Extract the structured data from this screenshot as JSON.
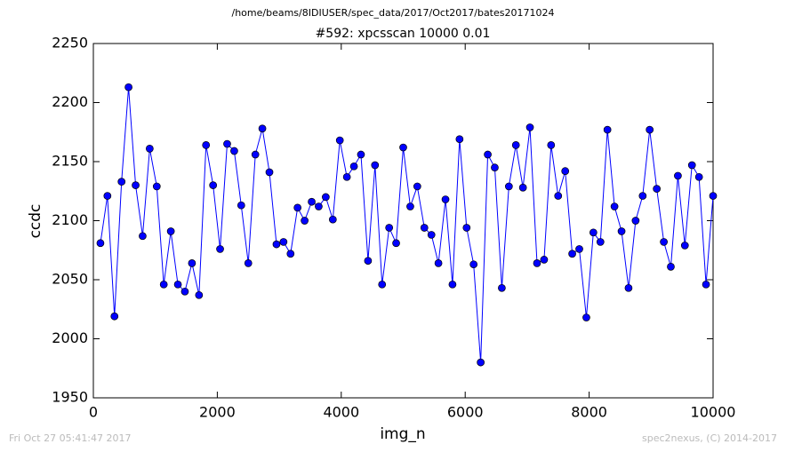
{
  "chart_data": {
    "type": "line",
    "suptitle": "/home/beams/8IDIUSER/spec_data/2017/Oct2017/bates20171024",
    "title": "#592: xpcsscan 10000 0.01",
    "xlabel": "img_n",
    "ylabel": "ccdc",
    "footer_left": "Fri Oct 27 05:41:47 2017",
    "footer_right": "spec2nexus, (C) 2014-2017",
    "xlim": [
      0,
      10000
    ],
    "xticks": [
      0,
      2000,
      4000,
      6000,
      8000,
      10000
    ],
    "ylim": [
      1950,
      2250
    ],
    "yticks": [
      1950,
      2000,
      2050,
      2100,
      2150,
      2200,
      2250
    ],
    "x": [
      114,
      227,
      341,
      455,
      568,
      682,
      795,
      909,
      1023,
      1136,
      1250,
      1364,
      1477,
      1591,
      1705,
      1818,
      1932,
      2045,
      2159,
      2273,
      2386,
      2500,
      2614,
      2727,
      2841,
      2955,
      3068,
      3182,
      3295,
      3409,
      3523,
      3636,
      3750,
      3864,
      3977,
      4091,
      4205,
      4318,
      4432,
      4545,
      4659,
      4773,
      4886,
      5000,
      5114,
      5227,
      5341,
      5455,
      5568,
      5682,
      5795,
      5909,
      6023,
      6136,
      6250,
      6364,
      6477,
      6591,
      6705,
      6818,
      6932,
      7045,
      7159,
      7273,
      7386,
      7500,
      7614,
      7727,
      7841,
      7955,
      8068,
      8182,
      8295,
      8409,
      8523,
      8636,
      8750,
      8864,
      8977,
      9091,
      9205,
      9318,
      9432,
      9545,
      9659,
      9773,
      9886,
      10000
    ],
    "series": [
      {
        "name": "ccdc",
        "color": "#0000ff",
        "values": [
          2081,
          2121,
          2019,
          2133,
          2213,
          2130,
          2087,
          2161,
          2129,
          2046,
          2091,
          2046,
          2040,
          2064,
          2037,
          2164,
          2130,
          2076,
          2165,
          2159,
          2113,
          2064,
          2156,
          2178,
          2141,
          2080,
          2082,
          2072,
          2111,
          2100,
          2116,
          2112,
          2120,
          2101,
          2168,
          2137,
          2146,
          2156,
          2066,
          2147,
          2046,
          2094,
          2081,
          2162,
          2112,
          2129,
          2094,
          2088,
          2064,
          2118,
          2046,
          2169,
          2094,
          2063,
          1980,
          2156,
          2145,
          2043,
          2129,
          2164,
          2128,
          2179,
          2064,
          2067,
          2164,
          2121,
          2142,
          2072,
          2076,
          2018,
          2090,
          2082,
          2177,
          2112,
          2091,
          2043,
          2100,
          2121,
          2177,
          2127,
          2082,
          2061,
          2138,
          2079,
          2147,
          2137,
          2046,
          2121
        ]
      }
    ]
  }
}
